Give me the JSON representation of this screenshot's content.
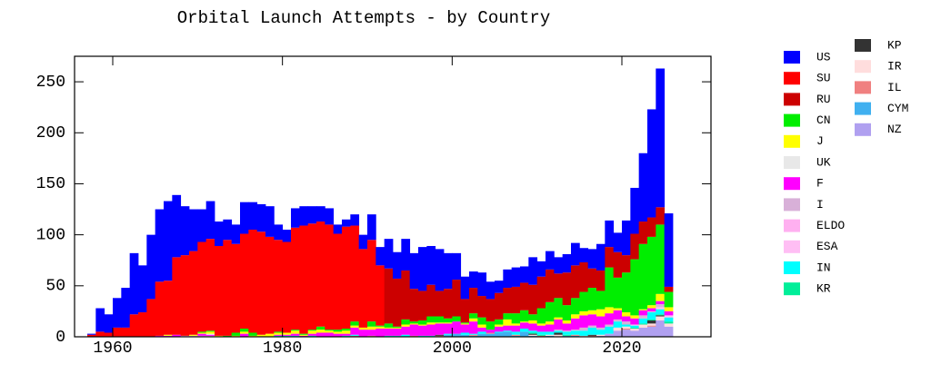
{
  "chart_data": {
    "type": "histogram",
    "title": "Orbital Launch Attempts - by Country",
    "bins": [
      1957,
      1958,
      1959,
      1960,
      1961,
      1962,
      1963,
      1964,
      1965,
      1966,
      1967,
      1968,
      1969,
      1970,
      1971,
      1972,
      1973,
      1974,
      1975,
      1976,
      1977,
      1978,
      1979,
      1980,
      1981,
      1982,
      1983,
      1984,
      1985,
      1986,
      1987,
      1988,
      1989,
      1990,
      1991,
      1992,
      1993,
      1994,
      1995,
      1996,
      1997,
      1998,
      1999,
      2000,
      2001,
      2002,
      2003,
      2004,
      2005,
      2006,
      2007,
      2008,
      2009,
      2010,
      2011,
      2012,
      2013,
      2014,
      2015,
      2016,
      2017,
      2018,
      2019,
      2020,
      2021,
      2022,
      2023,
      2024,
      2025,
      2026
    ],
    "xlim": [
      1955.5,
      2030.5
    ],
    "xticks": [
      1960,
      1980,
      2000,
      2020
    ],
    "ylim": [
      0,
      275
    ],
    "yticks": [
      0,
      50,
      100,
      150,
      200,
      250
    ],
    "series": [
      {
        "name": "US",
        "color": "#0000ff",
        "values": [
          1,
          23,
          18,
          29,
          39,
          60,
          46,
          63,
          71,
          78,
          61,
          48,
          41,
          32,
          37,
          24,
          20,
          19,
          31,
          27,
          27,
          30,
          15,
          12,
          19,
          19,
          17,
          15,
          16,
          9,
          7,
          11,
          14,
          25,
          18,
          29,
          26,
          31,
          35,
          43,
          38,
          41,
          35,
          26,
          22,
          16,
          23,
          17,
          12,
          18,
          19,
          16,
          27,
          15,
          18,
          16,
          18,
          22,
          14,
          19,
          26,
          26,
          19,
          34,
          45,
          67,
          106,
          136,
          72
        ]
      },
      {
        "name": "SU",
        "color": "#ff0000",
        "values": [
          2,
          5,
          4,
          9,
          9,
          22,
          24,
          37,
          53,
          53,
          76,
          79,
          82,
          88,
          90,
          88,
          94,
          87,
          93,
          101,
          101,
          95,
          90,
          89,
          100,
          106,
          104,
          103,
          103,
          94,
          100,
          94,
          77,
          80,
          59,
          0,
          0,
          0,
          0,
          0,
          0,
          0,
          0,
          0,
          0,
          0,
          0,
          0,
          0,
          0,
          0,
          0,
          0,
          0,
          0,
          0,
          0,
          0,
          0,
          0,
          0,
          0,
          0,
          0,
          0,
          0,
          0,
          0,
          0
        ]
      },
      {
        "name": "RU",
        "color": "#cc0000",
        "values": [
          0,
          0,
          0,
          0,
          0,
          0,
          0,
          0,
          0,
          0,
          0,
          0,
          0,
          0,
          0,
          0,
          0,
          0,
          0,
          0,
          0,
          0,
          0,
          0,
          0,
          0,
          0,
          0,
          0,
          0,
          0,
          0,
          0,
          0,
          0,
          54,
          47,
          48,
          32,
          29,
          31,
          25,
          29,
          36,
          23,
          25,
          21,
          22,
          26,
          25,
          26,
          27,
          29,
          31,
          32,
          24,
          32,
          32,
          29,
          19,
          20,
          20,
          25,
          17,
          25,
          22,
          19,
          17,
          5
        ]
      },
      {
        "name": "CN",
        "color": "#00ee00",
        "values": [
          0,
          0,
          0,
          0,
          0,
          0,
          0,
          0,
          0,
          0,
          0,
          0,
          0,
          1,
          1,
          0,
          1,
          3,
          3,
          3,
          0,
          0,
          1,
          0,
          1,
          1,
          1,
          3,
          1,
          2,
          2,
          4,
          0,
          5,
          1,
          4,
          1,
          5,
          2,
          4,
          6,
          6,
          4,
          5,
          1,
          5,
          7,
          8,
          5,
          6,
          10,
          11,
          6,
          15,
          19,
          19,
          15,
          16,
          19,
          22,
          18,
          39,
          30,
          39,
          55,
          64,
          67,
          68,
          15
        ]
      },
      {
        "name": "J",
        "color": "#ffff00",
        "values": [
          0,
          0,
          0,
          0,
          0,
          0,
          0,
          0,
          0,
          1,
          0,
          0,
          1,
          1,
          2,
          1,
          0,
          1,
          2,
          1,
          2,
          3,
          2,
          2,
          3,
          1,
          3,
          3,
          2,
          2,
          3,
          2,
          2,
          3,
          2,
          1,
          1,
          2,
          1,
          1,
          2,
          1,
          1,
          0,
          1,
          3,
          3,
          0,
          2,
          6,
          2,
          1,
          3,
          2,
          3,
          2,
          3,
          4,
          4,
          4,
          7,
          6,
          2,
          4,
          3,
          1,
          3,
          7,
          4
        ]
      },
      {
        "name": "UK",
        "color": "#e8e8e8",
        "values": [
          0,
          0,
          0,
          0,
          0,
          0,
          0,
          0,
          0,
          0,
          0,
          0,
          0,
          0,
          1,
          0,
          0,
          0,
          0,
          0,
          0,
          0,
          0,
          0,
          0,
          0,
          0,
          0,
          0,
          0,
          0,
          0,
          0,
          0,
          0,
          0,
          0,
          0,
          0,
          0,
          0,
          0,
          0,
          0,
          0,
          0,
          0,
          0,
          0,
          0,
          0,
          0,
          0,
          0,
          0,
          0,
          0,
          0,
          0,
          0,
          0,
          0,
          0,
          0,
          0,
          0,
          0,
          0,
          0
        ]
      },
      {
        "name": "F",
        "color": "#ff00ff",
        "values": [
          0,
          0,
          0,
          0,
          0,
          0,
          0,
          0,
          1,
          1,
          2,
          0,
          0,
          2,
          1,
          0,
          0,
          0,
          3,
          0,
          0,
          0,
          1,
          1,
          2,
          1,
          2,
          4,
          4,
          3,
          2,
          7,
          7,
          6,
          8,
          7,
          7,
          8,
          11,
          10,
          11,
          11,
          10,
          12,
          8,
          12,
          4,
          3,
          5,
          5,
          6,
          6,
          7,
          6,
          7,
          10,
          7,
          11,
          12,
          11,
          11,
          11,
          9,
          5,
          6,
          5,
          3,
          3,
          4
        ]
      },
      {
        "name": "I",
        "color": "#d8b0d8",
        "values": [
          0,
          0,
          0,
          0,
          0,
          0,
          0,
          0,
          0,
          0,
          0,
          0,
          0,
          0,
          0,
          0,
          0,
          0,
          0,
          0,
          0,
          0,
          0,
          0,
          0,
          0,
          0,
          0,
          0,
          0,
          0,
          0,
          0,
          0,
          0,
          0,
          0,
          0,
          0,
          0,
          0,
          0,
          0,
          0,
          0,
          0,
          0,
          0,
          0,
          0,
          0,
          0,
          0,
          0,
          0,
          1,
          1,
          1,
          3,
          2,
          2,
          2,
          2,
          3,
          0,
          3,
          1,
          3,
          0
        ]
      },
      {
        "name": "ELDO",
        "color": "#ffb0f0",
        "values": [
          0,
          0,
          0,
          0,
          0,
          0,
          0,
          0,
          0,
          0,
          0,
          1,
          1,
          1,
          1,
          0,
          0,
          0,
          0,
          0,
          0,
          0,
          0,
          0,
          0,
          0,
          0,
          0,
          0,
          0,
          0,
          0,
          0,
          0,
          0,
          0,
          0,
          0,
          0,
          0,
          0,
          0,
          0,
          0,
          0,
          0,
          0,
          0,
          0,
          0,
          0,
          0,
          0,
          0,
          0,
          0,
          0,
          0,
          0,
          0,
          0,
          0,
          0,
          0,
          0,
          0,
          0,
          0,
          0
        ]
      },
      {
        "name": "ESA",
        "color": "#ffbef4",
        "values": [
          0,
          0,
          0,
          0,
          0,
          0,
          0,
          0,
          0,
          0,
          0,
          0,
          0,
          0,
          0,
          0,
          0,
          0,
          0,
          0,
          0,
          0,
          0,
          0,
          0,
          0,
          0,
          0,
          0,
          0,
          0,
          0,
          0,
          0,
          0,
          0,
          0,
          0,
          0,
          0,
          0,
          0,
          0,
          0,
          0,
          0,
          0,
          0,
          0,
          0,
          0,
          0,
          0,
          0,
          0,
          0,
          0,
          0,
          0,
          0,
          0,
          0,
          0,
          0,
          1,
          0,
          0,
          2,
          2
        ]
      },
      {
        "name": "IN",
        "color": "#00ffff",
        "values": [
          0,
          0,
          0,
          0,
          0,
          0,
          0,
          0,
          0,
          0,
          0,
          0,
          0,
          0,
          0,
          0,
          0,
          0,
          0,
          0,
          0,
          0,
          1,
          1,
          1,
          0,
          1,
          0,
          0,
          0,
          1,
          1,
          0,
          0,
          0,
          1,
          1,
          2,
          0,
          1,
          1,
          0,
          1,
          0,
          2,
          1,
          2,
          0,
          1,
          1,
          3,
          3,
          2,
          3,
          3,
          2,
          3,
          4,
          5,
          7,
          5,
          7,
          6,
          2,
          2,
          5,
          7,
          5,
          4
        ]
      },
      {
        "name": "KR",
        "color": "#00ee99",
        "values": [
          0,
          0,
          0,
          0,
          0,
          0,
          0,
          0,
          0,
          0,
          0,
          0,
          0,
          0,
          0,
          0,
          0,
          0,
          0,
          0,
          0,
          0,
          0,
          0,
          0,
          0,
          0,
          0,
          0,
          0,
          0,
          0,
          0,
          0,
          0,
          0,
          0,
          0,
          0,
          0,
          0,
          0,
          0,
          0,
          0,
          0,
          0,
          0,
          0,
          0,
          0,
          0,
          1,
          1,
          0,
          0,
          1,
          0,
          0,
          0,
          0,
          0,
          0,
          0,
          1,
          1,
          1,
          1,
          2
        ]
      },
      {
        "name": "KP",
        "color": "#333333",
        "values": [
          0,
          0,
          0,
          0,
          0,
          0,
          0,
          0,
          0,
          0,
          0,
          0,
          0,
          0,
          0,
          0,
          0,
          0,
          0,
          0,
          0,
          0,
          0,
          0,
          0,
          0,
          0,
          0,
          0,
          0,
          0,
          0,
          0,
          0,
          0,
          0,
          0,
          0,
          0,
          0,
          0,
          1,
          0,
          0,
          0,
          0,
          0,
          0,
          0,
          0,
          0,
          0,
          1,
          0,
          0,
          2,
          0,
          0,
          0,
          1,
          0,
          0,
          0,
          0,
          0,
          0,
          3,
          1,
          0
        ]
      },
      {
        "name": "IR",
        "color": "#ffdddd",
        "values": [
          0,
          0,
          0,
          0,
          0,
          0,
          0,
          0,
          0,
          0,
          0,
          0,
          0,
          0,
          0,
          0,
          0,
          0,
          0,
          0,
          0,
          0,
          0,
          0,
          0,
          0,
          0,
          0,
          0,
          0,
          0,
          0,
          0,
          0,
          0,
          0,
          0,
          0,
          0,
          0,
          0,
          0,
          0,
          0,
          0,
          0,
          0,
          0,
          0,
          0,
          0,
          0,
          1,
          0,
          1,
          2,
          0,
          0,
          1,
          0,
          1,
          0,
          3,
          2,
          2,
          3,
          2,
          4,
          3
        ]
      },
      {
        "name": "IL",
        "color": "#f08080",
        "values": [
          0,
          0,
          0,
          0,
          0,
          0,
          0,
          0,
          0,
          0,
          0,
          0,
          0,
          0,
          0,
          0,
          0,
          0,
          0,
          0,
          0,
          0,
          0,
          0,
          0,
          0,
          0,
          0,
          0,
          0,
          0,
          1,
          0,
          1,
          0,
          0,
          0,
          0,
          1,
          0,
          0,
          1,
          0,
          0,
          0,
          1,
          0,
          1,
          0,
          0,
          1,
          0,
          0,
          1,
          0,
          0,
          0,
          1,
          0,
          1,
          0,
          0,
          0,
          1,
          0,
          0,
          1,
          0,
          0
        ]
      },
      {
        "name": "CYM",
        "color": "#40b0f0",
        "values": [
          0,
          0,
          0,
          0,
          0,
          0,
          0,
          0,
          0,
          0,
          0,
          0,
          0,
          0,
          0,
          0,
          0,
          0,
          0,
          0,
          0,
          0,
          0,
          0,
          0,
          0,
          0,
          0,
          0,
          0,
          0,
          0,
          0,
          0,
          0,
          0,
          0,
          0,
          0,
          0,
          0,
          0,
          2,
          3,
          2,
          1,
          3,
          3,
          4,
          5,
          1,
          5,
          1,
          0,
          1,
          0,
          1,
          1,
          0,
          0,
          0,
          0,
          0,
          0,
          0,
          0,
          0,
          0,
          0
        ]
      },
      {
        "name": "NZ",
        "color": "#b0a0f0",
        "values": [
          0,
          0,
          0,
          0,
          0,
          0,
          0,
          0,
          0,
          0,
          0,
          0,
          0,
          0,
          0,
          0,
          0,
          0,
          0,
          0,
          0,
          0,
          0,
          0,
          0,
          0,
          0,
          0,
          0,
          0,
          0,
          0,
          0,
          0,
          0,
          0,
          0,
          0,
          0,
          0,
          0,
          0,
          0,
          0,
          0,
          0,
          0,
          0,
          0,
          0,
          0,
          0,
          0,
          0,
          0,
          0,
          0,
          0,
          0,
          0,
          1,
          3,
          6,
          7,
          6,
          9,
          10,
          16,
          10
        ]
      }
    ]
  }
}
